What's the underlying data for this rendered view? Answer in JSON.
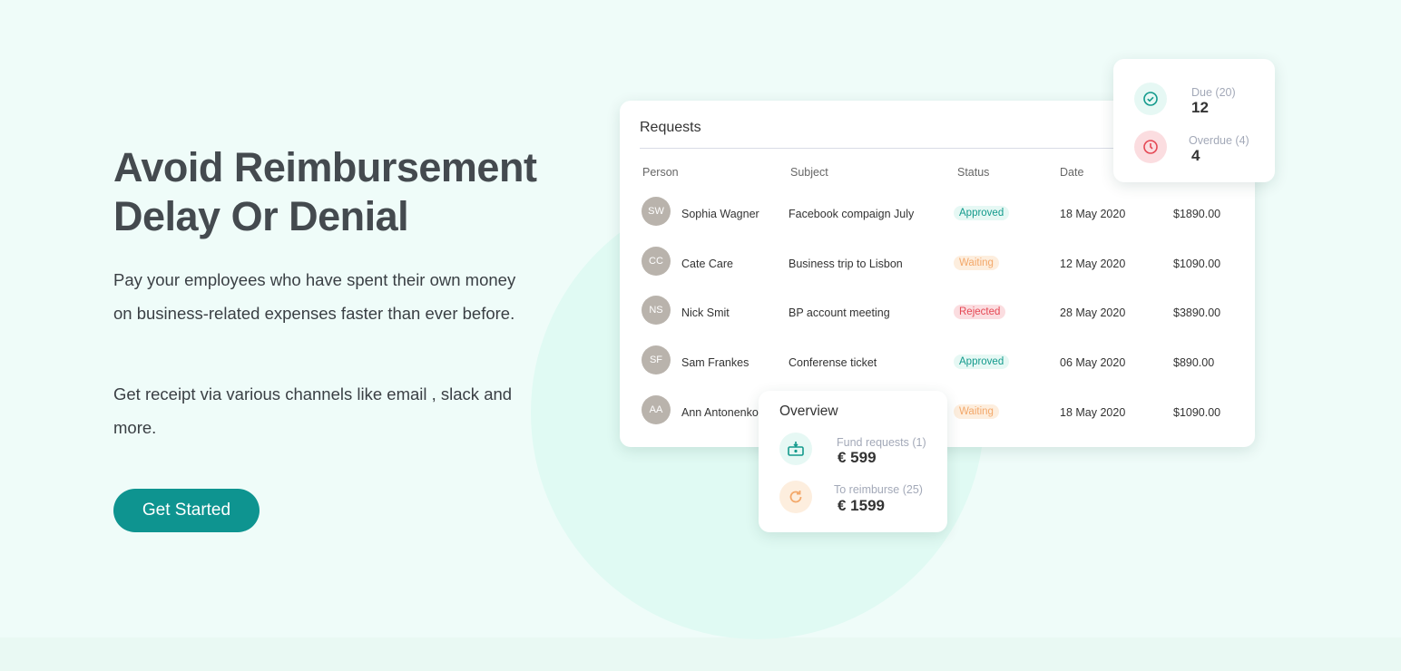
{
  "hero": {
    "title": "Avoid Reimbursement Delay Or Denial",
    "paragraph1": "Pay your employees who have spent their own money on  business-related expenses faster than ever before.",
    "paragraph2": "Get receipt via various channels like email , slack and more.",
    "cta_label": "Get Started"
  },
  "colors": {
    "accent": "#0e9490",
    "approved": "#139a8c",
    "waiting": "#f3a86a",
    "rejected": "#e54854",
    "background": "#effcf9"
  },
  "requests": {
    "title": "Requests",
    "columns": [
      "Person",
      "Subject",
      "Status",
      "Date",
      ""
    ],
    "rows": [
      {
        "person": "Sophia Wagner",
        "initials": "SW",
        "subject": "Facebook compaign July",
        "status": "Approved",
        "date": "18 May 2020",
        "amount": "$1890.00"
      },
      {
        "person": "Cate Care",
        "initials": "CC",
        "subject": "Business  trip to Lisbon",
        "status": "Waiting",
        "date": "12 May 2020",
        "amount": "$1090.00"
      },
      {
        "person": "Nick Smit",
        "initials": "NS",
        "subject": "BP account meeting",
        "status": "Rejected",
        "date": "28 May 2020",
        "amount": "$3890.00"
      },
      {
        "person": "Sam Frankes",
        "initials": "SF",
        "subject": "Conferense ticket",
        "status": "Approved",
        "date": "06 May 2020",
        "amount": "$890.00"
      },
      {
        "person": "Ann Antonenko",
        "initials": "AA",
        "subject": "",
        "status": "Waiting",
        "date": "18 May 2020",
        "amount": "$1090.00"
      }
    ]
  },
  "due_card": {
    "due_label": "Due (20)",
    "due_value": "12",
    "due_icon": "check-circle-icon",
    "overdue_label": "Overdue (4)",
    "overdue_value": "4",
    "overdue_icon": "clock-icon"
  },
  "overview": {
    "title": "Overview",
    "fund_label": "Fund requests (1)",
    "fund_value": "€ 599",
    "fund_icon": "money-download-icon",
    "reimburse_label": "To reimburse (25)",
    "reimburse_value": "€ 1599",
    "reimburse_icon": "refresh-icon"
  }
}
